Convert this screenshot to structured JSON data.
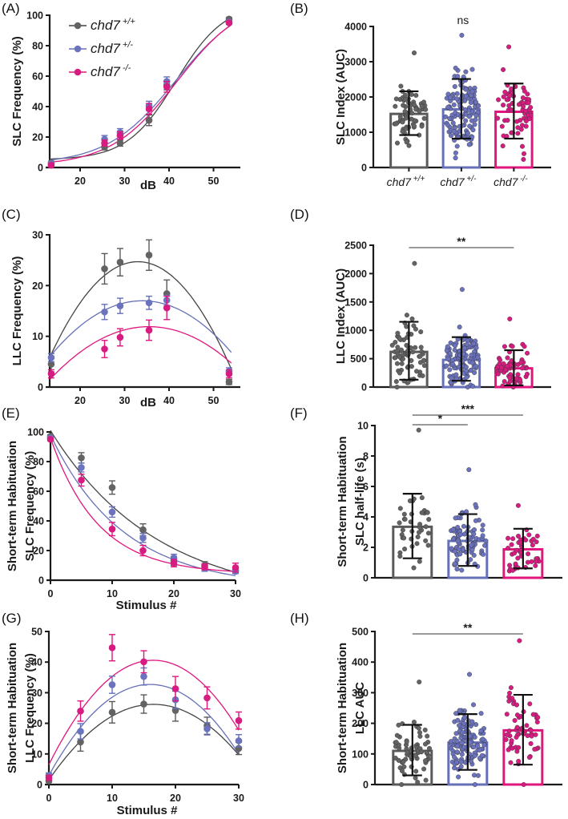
{
  "figure": {
    "groups": [
      {
        "key": "wt",
        "name": "chd7",
        "sup": "+/+",
        "color": "#5a5a5a",
        "fill": "#636363",
        "curve": "#444444"
      },
      {
        "key": "het",
        "name": "chd7",
        "sup": "+/-",
        "color": "#6670b8",
        "fill": "#6b73bf",
        "curve": "#6670b8"
      },
      {
        "key": "mut",
        "name": "chd7",
        "sup": "-/-",
        "color": "#e0157e",
        "fill": "#d81b80",
        "curve": "#e0157e"
      }
    ]
  },
  "chart_data": [
    {
      "panel": "(A)",
      "type": "line",
      "xlabel": "dB",
      "ylabel": "SLC Frequency (%)",
      "xlim": [
        13,
        55
      ],
      "ylim": [
        0,
        100
      ],
      "xticks": [
        20,
        30,
        40,
        50
      ],
      "yticks": [
        0,
        20,
        40,
        60,
        80,
        100
      ],
      "legend": "top-left",
      "legend_entries": [
        "chd7 +/+",
        "chd7 +/-",
        "chd7 -/-"
      ],
      "x": [
        13.5,
        25.5,
        29,
        35.5,
        39.5,
        53.5
      ],
      "series": [
        {
          "name": "chd7 +/+",
          "values": [
            3,
            13.5,
            16,
            31,
            54,
            97.5
          ],
          "err": [
            1,
            2,
            2,
            3.5,
            3,
            1
          ]
        },
        {
          "name": "chd7 +/-",
          "values": [
            2.5,
            18.5,
            23,
            40.5,
            56.5,
            95.5
          ],
          "err": [
            1,
            2.5,
            2.5,
            3,
            3,
            1
          ]
        },
        {
          "name": "chd7 -/-",
          "values": [
            1.5,
            16,
            21,
            38.5,
            53,
            95
          ],
          "err": [
            1,
            2,
            2.5,
            3.5,
            3.5,
            1
          ]
        }
      ],
      "fits": [
        {
          "name": "chd7 +/+",
          "type": "sigmoid",
          "bottom": 5,
          "top": 108,
          "x50": 41.5,
          "slope": 5.5
        },
        {
          "name": "chd7 +/-",
          "type": "sigmoid",
          "bottom": 2,
          "top": 112,
          "x50": 41.5,
          "slope": 7.8
        },
        {
          "name": "chd7 -/-",
          "type": "sigmoid",
          "bottom": 1,
          "top": 112,
          "x50": 41.8,
          "slope": 7.5
        }
      ]
    },
    {
      "panel": "(B)",
      "type": "bar",
      "ylabel": "SLC Index (AUC)",
      "ylim": [
        0,
        4000
      ],
      "yticks": [
        0,
        1000,
        2000,
        3000,
        4000
      ],
      "categories": [
        "chd7 +/+",
        "chd7 +/-",
        "chd7 -/-"
      ],
      "values": [
        1520,
        1650,
        1580
      ],
      "sd_low": [
        920,
        820,
        820
      ],
      "sd_high": [
        2160,
        2510,
        2380
      ],
      "n": [
        70,
        130,
        65
      ],
      "point_range": [
        [
          620,
          3250
        ],
        [
          270,
          3750
        ],
        [
          230,
          3420
        ]
      ],
      "significance": [
        {
          "pair": [
            0,
            1
          ],
          "label": "ns",
          "bracket": false
        }
      ]
    },
    {
      "panel": "(C)",
      "type": "line",
      "xlabel": "dB",
      "ylabel": "LLC Frequency (%)",
      "xlim": [
        13,
        55
      ],
      "ylim": [
        0,
        30
      ],
      "xticks": [
        20,
        30,
        40,
        50
      ],
      "yticks": [
        0,
        10,
        20,
        30
      ],
      "x": [
        13.5,
        25.5,
        29,
        35.5,
        39.5,
        53.5
      ],
      "series": [
        {
          "name": "chd7 +/+",
          "values": [
            4.5,
            23.3,
            24.6,
            26,
            18.4,
            1
          ],
          "err": [
            1.5,
            3,
            2.7,
            3,
            2.7,
            0.5
          ]
        },
        {
          "name": "chd7 +/-",
          "values": [
            5.8,
            14.8,
            16,
            16.6,
            17.1,
            3.1
          ],
          "err": [
            0.8,
            1.5,
            1.5,
            1.3,
            1,
            0.7
          ]
        },
        {
          "name": "chd7 -/-",
          "values": [
            2.6,
            7.5,
            9.8,
            11.2,
            15.6,
            2.6
          ],
          "err": [
            0.8,
            1.7,
            1.7,
            2,
            2.3,
            0.8
          ]
        }
      ],
      "fits": [
        {
          "name": "chd7 +/+",
          "type": "quadratic",
          "peak_x": 33,
          "peak_y": 24.7,
          "y_at_13": 5.5,
          "y_at_54": 0.3
        },
        {
          "name": "chd7 +/-",
          "type": "quadratic",
          "peak_x": 34,
          "peak_y": 17,
          "y_at_13": 5.8,
          "y_at_54": 3.6
        },
        {
          "name": "chd7 -/-",
          "type": "quadratic",
          "peak_x": 35.5,
          "peak_y": 11.9,
          "y_at_13": 1.3,
          "y_at_54": 3.8
        }
      ]
    },
    {
      "panel": "(D)",
      "type": "bar",
      "ylabel": "LLC Index (AUC)",
      "ylim": [
        0,
        2500
      ],
      "yticks": [
        0,
        500,
        1000,
        1500,
        2000,
        2500
      ],
      "categories": [
        "chd7 +/+",
        "chd7 +/-",
        "chd7 -/-"
      ],
      "values": [
        620,
        480,
        330
      ],
      "sd_low": [
        130,
        110,
        30
      ],
      "sd_high": [
        1150,
        880,
        650
      ],
      "n": [
        70,
        130,
        65
      ],
      "point_range": [
        [
          0,
          2180
        ],
        [
          0,
          1720
        ],
        [
          0,
          1200
        ]
      ],
      "significance": [
        {
          "pair": [
            0,
            2
          ],
          "label": "**",
          "bracket": true
        }
      ]
    },
    {
      "panel": "(E)",
      "type": "line",
      "xlabel": "Stimulus #",
      "ylabel": "Short-term Habituation\nSLC Frequency (%)",
      "ylabel_lines": [
        "Short-term Habituation",
        "SLC Frequency (%)"
      ],
      "xlim": [
        0,
        30
      ],
      "ylim": [
        0,
        100
      ],
      "xticks": [
        0,
        10,
        20,
        30
      ],
      "yticks": [
        0,
        20,
        40,
        60,
        80,
        100
      ],
      "x": [
        0,
        5,
        10,
        15,
        20,
        25,
        30
      ],
      "series": [
        {
          "name": "chd7 +/+",
          "values": [
            97,
            82.5,
            62.5,
            34,
            13,
            10,
            7
          ],
          "err": [
            1,
            3.5,
            4.5,
            4,
            3,
            2.5,
            2
          ]
        },
        {
          "name": "chd7 +/-",
          "values": [
            96,
            76,
            46,
            28.5,
            15,
            8,
            6
          ],
          "err": [
            1,
            3,
            3.5,
            3,
            2.5,
            2,
            1.5
          ]
        },
        {
          "name": "chd7 -/-",
          "values": [
            95,
            67.5,
            34.5,
            20,
            11.5,
            9,
            8.5
          ],
          "err": [
            1,
            4,
            4.5,
            3.5,
            2.5,
            2,
            3
          ]
        }
      ],
      "fits": [
        {
          "name": "chd7 +/+",
          "type": "decay",
          "y0": 101,
          "k": 0.058,
          "plateau": -15
        },
        {
          "name": "chd7 +/-",
          "type": "decay",
          "y0": 98,
          "k": 0.085,
          "plateau": -5
        },
        {
          "name": "chd7 -/-",
          "type": "decay",
          "y0": 96,
          "k": 0.13,
          "plateau": 4
        }
      ]
    },
    {
      "panel": "(F)",
      "type": "bar",
      "ylabel": "Short-term Habituation\nSLC half-life (s)",
      "ylabel_lines": [
        "Short-term Habituation",
        "SLC half-life (s)"
      ],
      "ylim": [
        0,
        10
      ],
      "yticks": [
        0,
        2,
        4,
        6,
        8,
        10
      ],
      "categories": [
        "chd7 +/+",
        "chd7 +/-",
        "chd7 -/-"
      ],
      "values": [
        3.35,
        2.42,
        1.87
      ],
      "sd_low": [
        1.28,
        0.78,
        0.62
      ],
      "sd_high": [
        5.52,
        4.18,
        3.22
      ],
      "n": [
        40,
        90,
        45
      ],
      "point_range": [
        [
          0.65,
          9.7
        ],
        [
          0.5,
          7.1
        ],
        [
          0.45,
          4.75
        ]
      ],
      "significance": [
        {
          "pair": [
            0,
            1
          ],
          "label": "*",
          "bracket": true
        },
        {
          "pair": [
            0,
            2
          ],
          "label": "***",
          "bracket": true
        }
      ]
    },
    {
      "panel": "(G)",
      "type": "line",
      "xlabel": "Stimulus #",
      "ylabel": "Short-term Habituation\nLLC Frequency (%)",
      "ylabel_lines": [
        "Short-term Habituation",
        "LLC Frequency (%)"
      ],
      "xlim": [
        0,
        30
      ],
      "ylim": [
        0,
        50
      ],
      "xticks": [
        0,
        10,
        20,
        30
      ],
      "yticks": [
        0,
        10,
        20,
        30,
        40,
        50
      ],
      "x": [
        0,
        5,
        10,
        15,
        20,
        25,
        30
      ],
      "series": [
        {
          "name": "chd7 +/+",
          "values": [
            1.2,
            13.9,
            23.6,
            26.3,
            24.2,
            19.2,
            11.8
          ],
          "err": [
            0.5,
            3,
            3.5,
            3,
            3.5,
            2.8,
            2
          ]
        },
        {
          "name": "chd7 +/-",
          "values": [
            3,
            17.4,
            32.6,
            35.3,
            27.7,
            18.2,
            14.3
          ],
          "err": [
            0.8,
            2.5,
            2.8,
            2.8,
            2.8,
            2,
            2
          ]
        },
        {
          "name": "chd7 -/-",
          "values": [
            2.2,
            24,
            44.7,
            40.1,
            31.3,
            28.3,
            20.9
          ],
          "err": [
            0.8,
            3.3,
            4.3,
            3.6,
            4,
            3.6,
            2.8
          ]
        }
      ],
      "fits": [
        {
          "name": "chd7 +/+",
          "type": "quadratic",
          "peak_x": 16.5,
          "peak_y": 26.2,
          "y_at_0": 1.5,
          "y_at_30": 11.2
        },
        {
          "name": "chd7 +/-",
          "type": "quadratic",
          "peak_x": 16,
          "peak_y": 32.7,
          "y_at_0": 3,
          "y_at_30": 11.5
        },
        {
          "name": "chd7 -/-",
          "type": "quadratic",
          "peak_x": 16.5,
          "peak_y": 40.6,
          "y_at_0": 6.5,
          "y_at_30": 16
        }
      ]
    },
    {
      "panel": "(H)",
      "type": "bar",
      "ylabel": "Short-term Habituation\nLLC AUC",
      "ylabel_lines": [
        "Short-term Habituation",
        "LLC AUC"
      ],
      "ylim": [
        0,
        500
      ],
      "yticks": [
        0,
        100,
        200,
        300,
        400,
        500
      ],
      "categories": [
        "chd7 +/+",
        "chd7 +/-",
        "chd7 -/-"
      ],
      "values": [
        110,
        137,
        177
      ],
      "sd_low": [
        30,
        48,
        65
      ],
      "sd_high": [
        195,
        230,
        293
      ],
      "n": [
        70,
        130,
        60
      ],
      "point_range": [
        [
          0,
          335
        ],
        [
          0,
          360
        ],
        [
          0,
          470
        ]
      ],
      "significance": [
        {
          "pair": [
            0,
            2
          ],
          "label": "**",
          "bracket": true
        }
      ]
    }
  ]
}
